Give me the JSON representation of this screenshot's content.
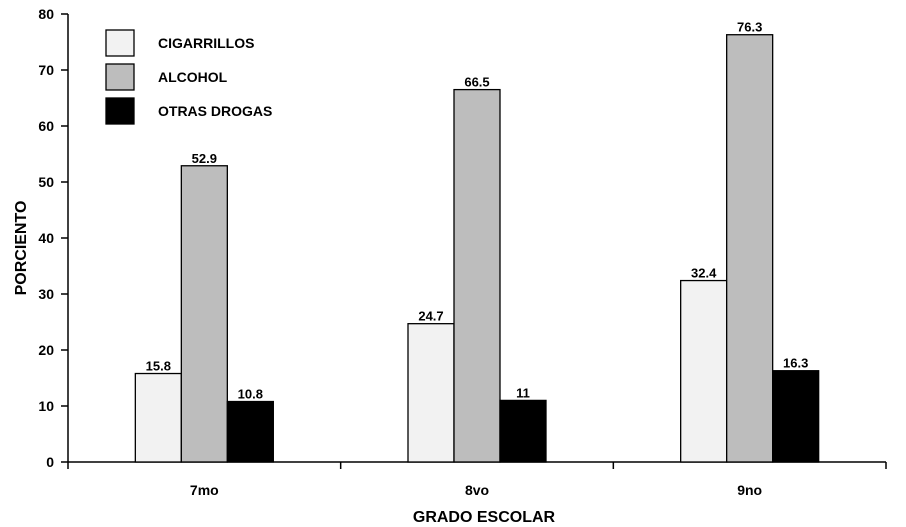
{
  "chart_data": {
    "type": "bar",
    "categories": [
      "7mo",
      "8vo",
      "9no"
    ],
    "series": [
      {
        "name": "CIGARRILLOS",
        "values": [
          15.8,
          24.7,
          32.4
        ],
        "labels": [
          "15.8",
          "24.7",
          "32.4"
        ],
        "color": "#f2f2f2"
      },
      {
        "name": "ALCOHOL",
        "values": [
          52.9,
          66.5,
          76.3
        ],
        "labels": [
          "52.9",
          "66.5",
          "76.3"
        ],
        "color": "#bdbdbd"
      },
      {
        "name": "OTRAS DROGAS",
        "values": [
          10.8,
          11,
          16.3
        ],
        "labels": [
          "10.8",
          "11",
          "16.3"
        ],
        "color": "#000000"
      }
    ],
    "xlabel": "GRADO ESCOLAR",
    "ylabel": "PORCIENTO",
    "ylim": [
      0,
      80
    ],
    "yticks": [
      0,
      10,
      20,
      30,
      40,
      50,
      60,
      70,
      80
    ],
    "grid": false,
    "legend_position": "top-left"
  }
}
